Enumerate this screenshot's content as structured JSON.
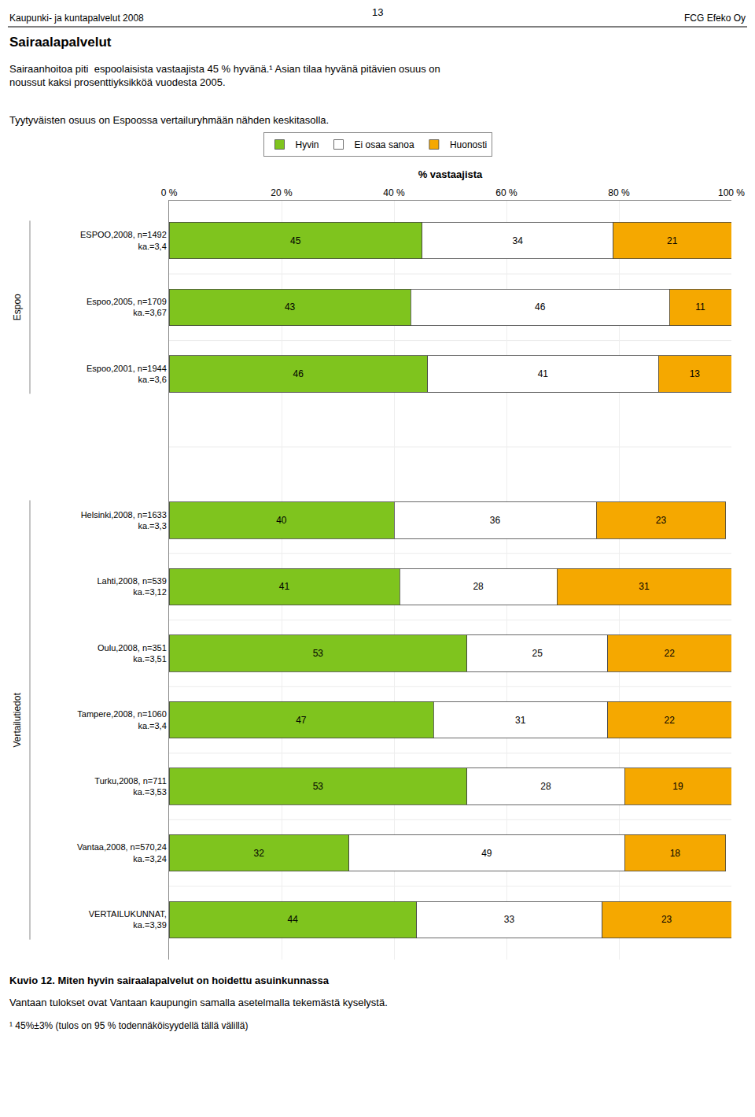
{
  "chart_data": {
    "type": "bar",
    "orientation": "horizontal",
    "stacked": true,
    "data_labels": true,
    "grid": true,
    "legend": "upper center",
    "page_number": "13",
    "header_left": "Kaupunki- ja kuntapalvelut 2008",
    "header_right": "FCG Efeko Oy",
    "title": "Sairaalapalvelut",
    "subtitle": [
      "Sairaanhoitoa piti  espoolaisista vastaajista 45 % hyvänä.¹ Asian tilaa hyvänä pitävien osuus on\nnoussut kaksi prosenttiyksikköä vuodesta 2005.",
      "Tyytyväisten osuus on Espoossa vertailuryhmään nähden keskitasolla."
    ],
    "xlabel": "% vastaajista",
    "categories": [
      "ESPOO,2008, n=1492\nka.=3,4",
      "Espoo,2005, n=1709\nka.=3,67",
      "Espoo,2001, n=1944\nka.=3,6",
      "Helsinki,2008, n=1633\nka.=3,3",
      "Lahti,2008, n=539\nka.=3,12",
      "Oulu,2008, n=351\nka.=3,51",
      "Tampere,2008, n=1060\nka.=3,4",
      "Turku,2008, n=711\nka.=3,53",
      "Vantaa,2008, n=570,24\nka.=3,24",
      "VERTAILUKUNNAT,\nka.=3,39"
    ],
    "groups": [
      "Espoo",
      "Espoo",
      "Espoo",
      "Vertailutiedot",
      "Vertailutiedot",
      "Vertailutiedot",
      "Vertailutiedot",
      "Vertailutiedot",
      "Vertailutiedot",
      "Vertailutiedot"
    ],
    "series": [
      {
        "name": "Hyvin",
        "color": "#7fc41e",
        "values": [
          45,
          43,
          46,
          40,
          41,
          53,
          47,
          53,
          32,
          44
        ]
      },
      {
        "name": "Ei osaa sanoa",
        "color": "#ffffff",
        "values": [
          34,
          46,
          41,
          36,
          28,
          25,
          31,
          28,
          49,
          33
        ]
      },
      {
        "name": "Huonosti",
        "color": "#f5a800",
        "values": [
          21,
          11,
          13,
          23,
          31,
          22,
          22,
          19,
          18,
          23
        ]
      }
    ],
    "xlim": [
      0,
      100
    ],
    "xticks": [
      {
        "value": 0,
        "label": "0 %"
      },
      {
        "value": 20,
        "label": "20 %"
      },
      {
        "value": 40,
        "label": "40 %"
      },
      {
        "value": 60,
        "label": "60 %"
      },
      {
        "value": 80,
        "label": "80 %"
      },
      {
        "value": 100,
        "label": "100 %"
      }
    ],
    "caption": [
      "Kuvio 12. Miten hyvin sairaalapalvelut on hoidettu asuinkunnassa",
      "Vantaan tulokset ovat Vantaan kaupungin samalla asetelmalla tekemästä kyselystä."
    ],
    "footnote": "¹ 45%±3% (tulos on 95 % todennäköisyydellä tällä välillä)"
  }
}
